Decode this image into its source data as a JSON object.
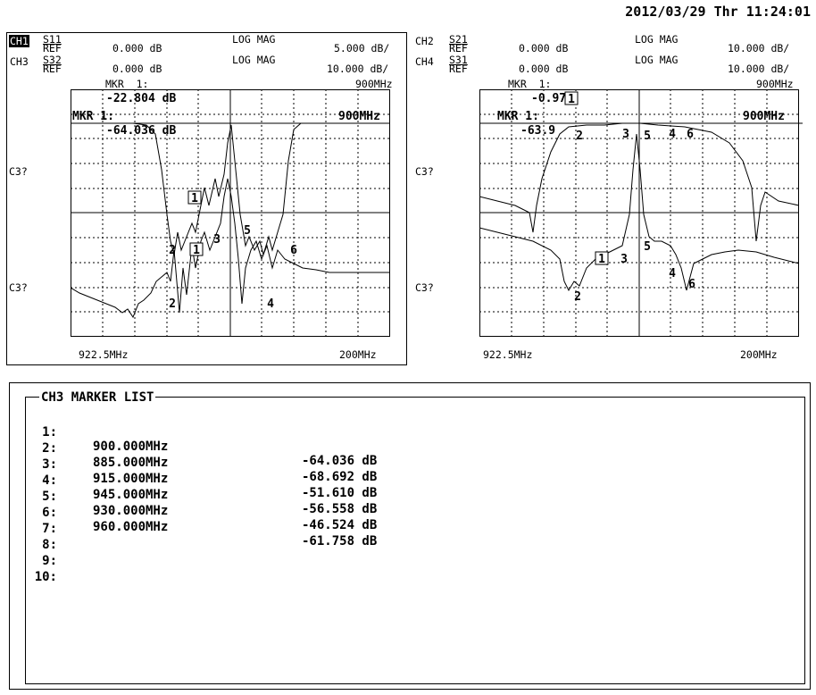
{
  "datetime": "2012/03/29 Thr 11:24:01",
  "left": {
    "ch_a": "CH1",
    "ch_a_param": "S11",
    "ch_a_ref": "REF",
    "ch_a_ref_val": "0.000 dB",
    "ch_a_fmt": "LOG MAG",
    "ch_a_scale": "5.000 dB/",
    "ch_b": "CH3",
    "ch_b_param": "S32",
    "ch_b_ref": "REF",
    "ch_b_ref_val": "0.000 dB",
    "ch_b_fmt": "LOG MAG",
    "ch_b_scale": "10.000 dB/",
    "mkr_a": "MKR  1:",
    "mkr_a_freq": "900MHz",
    "mkr_a_val": "-22.804 dB",
    "mkr_b": "MKR  1:",
    "mkr_b_freq": "900MHz",
    "mkr_b_val": "-64.036 dB",
    "side1": "C3?",
    "side2": "C3?",
    "start": "922.5MHz",
    "stop": "200MHz"
  },
  "right": {
    "ch_a": "CH2",
    "ch_a_param": "S21",
    "ch_a_ref": "REF",
    "ch_a_ref_val": "0.000 dB",
    "ch_a_fmt": "LOG MAG",
    "ch_a_scale": "10.000 dB/",
    "ch_b": "CH4",
    "ch_b_param": "S31",
    "ch_b_ref": "REF",
    "ch_b_ref_val": "0.000 dB",
    "ch_b_fmt": "LOG MAG",
    "ch_b_scale": "10.000 dB/",
    "mkr_a": "MKR  1:",
    "mkr_a_freq": "900MHz",
    "mkr_a_val": "-0.97",
    "mkr_b": "MKR  1:",
    "mkr_b_freq": "900MHz",
    "mkr_b_val": "-63.9",
    "side1": "C3?",
    "side2": "C3?",
    "start": "922.5MHz",
    "stop": "200MHz"
  },
  "marker_list": {
    "title": "CH3 MARKER LIST",
    "rows": [
      {
        "idx": "1:",
        "freq": "900.000MHz",
        "val": "-64.036 dB"
      },
      {
        "idx": "2:",
        "freq": "885.000MHz",
        "val": "-68.692 dB"
      },
      {
        "idx": "3:",
        "freq": "915.000MHz",
        "val": "-51.610 dB"
      },
      {
        "idx": "4:",
        "freq": "945.000MHz",
        "val": "-56.558 dB"
      },
      {
        "idx": "5:",
        "freq": "930.000MHz",
        "val": "-46.524 dB"
      },
      {
        "idx": "6:",
        "freq": "960.000MHz",
        "val": "-61.758 dB"
      },
      {
        "idx": "7:",
        "freq": "",
        "val": ""
      },
      {
        "idx": "8:",
        "freq": "",
        "val": ""
      },
      {
        "idx": "9:",
        "freq": "",
        "val": ""
      },
      {
        "idx": "10:",
        "freq": "",
        "val": ""
      }
    ]
  },
  "marker_labels": {
    "m1": "1",
    "m2": "2",
    "m3": "3",
    "m4": "4",
    "m5": "5",
    "m6": "6"
  }
}
